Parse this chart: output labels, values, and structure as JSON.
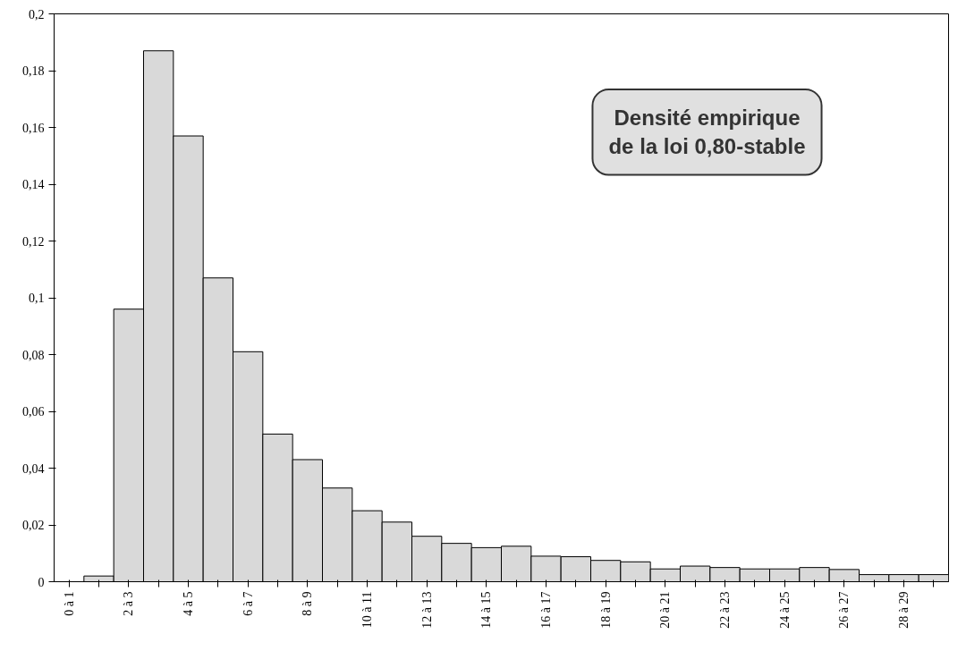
{
  "chart_data": {
    "type": "bar",
    "categories": [
      "0 à 1",
      null,
      "2 à 3",
      null,
      "4 à 5",
      null,
      "6 à 7",
      null,
      "8 à 9",
      null,
      "10 à 11",
      null,
      "12 à 13",
      null,
      "14 à 15",
      null,
      "16 à 17",
      null,
      "18 à 19",
      null,
      "20 à 21",
      null,
      "22 à 23",
      null,
      "24 à 25",
      null,
      "26 à 27",
      null,
      "28 à 29",
      null
    ],
    "values": [
      0,
      0.002,
      0.096,
      0.187,
      0.157,
      0.107,
      0.081,
      0.052,
      0.043,
      0.033,
      0.025,
      0.021,
      0.016,
      0.0135,
      0.012,
      0.0125,
      0.009,
      0.0088,
      0.0075,
      0.007,
      0.0045,
      0.0055,
      0.005,
      0.0045,
      0.0045,
      0.005,
      0.0043,
      0.0025,
      0.0025,
      0.0025
    ],
    "color": "#d9d9d9",
    "ylim": [
      0,
      0.2
    ],
    "yticks": [
      0,
      {
        "value": 0.02,
        "label": "0,02"
      },
      {
        "value": 0.04,
        "label": "0,04"
      },
      {
        "value": 0.06,
        "label": "0,06"
      },
      {
        "value": 0.08,
        "label": "0,08"
      },
      {
        "value": 0.1,
        "label": "0,1"
      },
      {
        "value": 0.12,
        "label": "0,12"
      },
      {
        "value": 0.14,
        "label": "0,14"
      },
      {
        "value": 0.16,
        "label": "0,16"
      },
      {
        "value": 0.18,
        "label": "0,18"
      },
      {
        "value": 0.2,
        "label": "0,2"
      }
    ],
    "annotations": [
      "Densité empirique\nde la loi 0,80-stable"
    ],
    "grid": false
  }
}
